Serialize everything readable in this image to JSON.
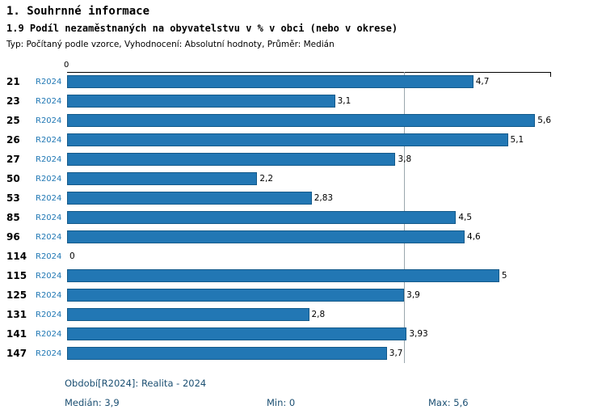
{
  "header": {
    "title": "1. Souhrnné informace",
    "subtitle": "1.9 Podíl nezaměstnaných na obyvatelstvu v % v obci (nebo v okrese)",
    "meta": "Typ: Počítaný podle vzorce, Vyhodnocení: Absolutní hodnoty, Průměr: Medián"
  },
  "chart_data": {
    "type": "bar",
    "orientation": "horizontal",
    "title": "1.9 Podíl nezaměstnaných na obyvatelstvu v % v obci (nebo v okrese)",
    "categories": [
      "21",
      "23",
      "25",
      "26",
      "27",
      "50",
      "53",
      "85",
      "96",
      "114",
      "115",
      "125",
      "131",
      "141",
      "147"
    ],
    "series_label": "R2024",
    "values": [
      4.7,
      3.1,
      5.6,
      5.1,
      3.8,
      2.2,
      2.83,
      4.5,
      4.6,
      0,
      5,
      3.9,
      2.8,
      3.93,
      3.7
    ],
    "value_labels": [
      "4,7",
      "3,1",
      "5,6",
      "5,1",
      "3,8",
      "2,2",
      "2,83",
      "4,5",
      "4,6",
      "0",
      "5",
      "3,9",
      "2,8",
      "3,93",
      "3,7"
    ],
    "xlim": [
      0,
      5.6
    ],
    "axis_tick": "0",
    "median": 3.9,
    "min": 0,
    "max": 5.6,
    "grid": false,
    "legend": "none",
    "bar_color": "#2277b4",
    "bar_border_color": "#145a8a",
    "accent_color": "#1f77b4",
    "median_line_color": "#9ba7ad",
    "footer_text_color": "#1b4f72"
  },
  "footer": {
    "period": "Období[R2024]: Realita - 2024",
    "median": "Medián: 3,9",
    "min": "Min: 0",
    "max": "Max: 5,6"
  }
}
